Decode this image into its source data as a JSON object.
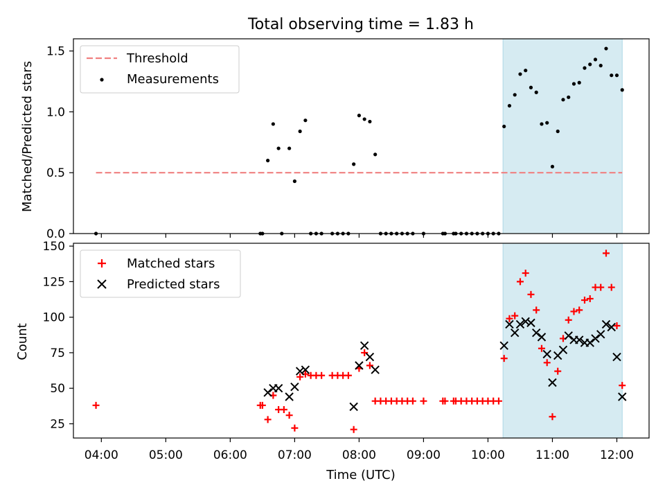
{
  "figure": {
    "title": "Total observing time = 1.83 h",
    "xlabel": "Time (UTC)"
  },
  "chart_data": [
    {
      "type": "scatter",
      "panel": "top",
      "title": "Total observing time = 1.83 h",
      "xlabel": "",
      "ylabel": "Matched/Predicted stars",
      "xlim": [
        "03:34",
        "12:30"
      ],
      "ylim": [
        0,
        1.6
      ],
      "yticks": [
        0.0,
        0.5,
        1.0,
        1.5
      ],
      "ytick_labels": [
        "0.0",
        "0.5",
        "1.0",
        "1.5"
      ],
      "xticks": [
        "04:00",
        "05:00",
        "06:00",
        "07:00",
        "08:00",
        "09:00",
        "10:00",
        "11:00",
        "12:00"
      ],
      "grid": false,
      "legend": "top-left",
      "shaded_region": {
        "x": [
          "10:14",
          "12:05"
        ],
        "color": "#add8e6"
      },
      "threshold": {
        "name": "Threshold",
        "y": 0.5,
        "x": [
          "03:55",
          "12:05"
        ],
        "color": "#f08080",
        "style": "dashed"
      },
      "series": [
        {
          "name": "Measurements",
          "marker": "dot",
          "color": "#000000",
          "points": [
            [
              "03:55",
              0.0
            ],
            [
              "06:28",
              0.0
            ],
            [
              "06:30",
              0.0
            ],
            [
              "06:48",
              0.0
            ],
            [
              "06:35",
              0.6
            ],
            [
              "06:40",
              0.9
            ],
            [
              "06:45",
              0.7
            ],
            [
              "06:55",
              0.7
            ],
            [
              "07:00",
              0.43
            ],
            [
              "07:05",
              0.84
            ],
            [
              "07:10",
              0.93
            ],
            [
              "07:15",
              0.0
            ],
            [
              "07:20",
              0.0
            ],
            [
              "07:25",
              0.0
            ],
            [
              "07:35",
              0.0
            ],
            [
              "07:40",
              0.0
            ],
            [
              "07:45",
              0.0
            ],
            [
              "07:50",
              0.0
            ],
            [
              "07:55",
              0.57
            ],
            [
              "08:00",
              0.97
            ],
            [
              "08:05",
              0.94
            ],
            [
              "08:10",
              0.92
            ],
            [
              "08:15",
              0.65
            ],
            [
              "08:20",
              0.0
            ],
            [
              "08:25",
              0.0
            ],
            [
              "08:30",
              0.0
            ],
            [
              "08:35",
              0.0
            ],
            [
              "08:40",
              0.0
            ],
            [
              "08:45",
              0.0
            ],
            [
              "08:50",
              0.0
            ],
            [
              "09:00",
              0.0
            ],
            [
              "09:18",
              0.0
            ],
            [
              "09:20",
              0.0
            ],
            [
              "09:28",
              0.0
            ],
            [
              "09:30",
              0.0
            ],
            [
              "09:35",
              0.0
            ],
            [
              "09:40",
              0.0
            ],
            [
              "09:45",
              0.0
            ],
            [
              "09:50",
              0.0
            ],
            [
              "09:55",
              0.0
            ],
            [
              "10:00",
              0.0
            ],
            [
              "10:05",
              0.0
            ],
            [
              "10:10",
              0.0
            ],
            [
              "10:15",
              0.88
            ],
            [
              "10:20",
              1.05
            ],
            [
              "10:25",
              1.14
            ],
            [
              "10:30",
              1.31
            ],
            [
              "10:35",
              1.34
            ],
            [
              "10:40",
              1.2
            ],
            [
              "10:45",
              1.16
            ],
            [
              "10:50",
              0.9
            ],
            [
              "10:55",
              0.91
            ],
            [
              "11:00",
              0.55
            ],
            [
              "11:05",
              0.84
            ],
            [
              "11:10",
              1.1
            ],
            [
              "11:15",
              1.12
            ],
            [
              "11:20",
              1.23
            ],
            [
              "11:25",
              1.24
            ],
            [
              "11:30",
              1.36
            ],
            [
              "11:35",
              1.39
            ],
            [
              "11:40",
              1.43
            ],
            [
              "11:45",
              1.38
            ],
            [
              "11:50",
              1.52
            ],
            [
              "11:55",
              1.3
            ],
            [
              "12:00",
              1.3
            ],
            [
              "12:05",
              1.18
            ]
          ]
        }
      ]
    },
    {
      "type": "scatter",
      "panel": "bottom",
      "xlabel": "Time (UTC)",
      "ylabel": "Count",
      "xlim": [
        "03:34",
        "12:30"
      ],
      "ylim": [
        15,
        152
      ],
      "yticks": [
        25,
        50,
        75,
        100,
        125,
        150
      ],
      "ytick_labels": [
        "25",
        "50",
        "75",
        "100",
        "125",
        "150"
      ],
      "xticks": [
        "04:00",
        "05:00",
        "06:00",
        "07:00",
        "08:00",
        "09:00",
        "10:00",
        "11:00",
        "12:00"
      ],
      "xtick_labels": [
        "04:00",
        "05:00",
        "06:00",
        "07:00",
        "08:00",
        "09:00",
        "10:00",
        "11:00",
        "12:00"
      ],
      "grid": false,
      "legend": "top-left",
      "shaded_region": {
        "x": [
          "10:14",
          "12:05"
        ],
        "color": "#add8e6"
      },
      "series": [
        {
          "name": "Matched stars",
          "marker": "plus",
          "color": "#ff0000",
          "points": [
            [
              "03:55",
              38
            ],
            [
              "06:28",
              38
            ],
            [
              "06:30",
              38
            ],
            [
              "06:35",
              28
            ],
            [
              "06:40",
              45
            ],
            [
              "06:45",
              35
            ],
            [
              "06:50",
              35
            ],
            [
              "06:55",
              31
            ],
            [
              "07:00",
              22
            ],
            [
              "07:05",
              58
            ],
            [
              "07:10",
              60
            ],
            [
              "07:15",
              59
            ],
            [
              "07:20",
              59
            ],
            [
              "07:25",
              59
            ],
            [
              "07:35",
              59
            ],
            [
              "07:40",
              59
            ],
            [
              "07:45",
              59
            ],
            [
              "07:50",
              59
            ],
            [
              "07:55",
              21
            ],
            [
              "08:00",
              64
            ],
            [
              "08:05",
              75
            ],
            [
              "08:10",
              66
            ],
            [
              "08:15",
              41
            ],
            [
              "08:20",
              41
            ],
            [
              "08:25",
              41
            ],
            [
              "08:30",
              41
            ],
            [
              "08:35",
              41
            ],
            [
              "08:40",
              41
            ],
            [
              "08:45",
              41
            ],
            [
              "08:50",
              41
            ],
            [
              "09:00",
              41
            ],
            [
              "09:18",
              41
            ],
            [
              "09:20",
              41
            ],
            [
              "09:28",
              41
            ],
            [
              "09:30",
              41
            ],
            [
              "09:35",
              41
            ],
            [
              "09:40",
              41
            ],
            [
              "09:45",
              41
            ],
            [
              "09:50",
              41
            ],
            [
              "09:55",
              41
            ],
            [
              "10:00",
              41
            ],
            [
              "10:05",
              41
            ],
            [
              "10:10",
              41
            ],
            [
              "10:15",
              71
            ],
            [
              "10:20",
              99
            ],
            [
              "10:25",
              101
            ],
            [
              "10:30",
              125
            ],
            [
              "10:35",
              131
            ],
            [
              "10:40",
              116
            ],
            [
              "10:45",
              105
            ],
            [
              "10:50",
              78
            ],
            [
              "10:55",
              68
            ],
            [
              "11:00",
              30
            ],
            [
              "11:05",
              62
            ],
            [
              "11:10",
              85
            ],
            [
              "11:15",
              98
            ],
            [
              "11:20",
              104
            ],
            [
              "11:25",
              105
            ],
            [
              "11:30",
              112
            ],
            [
              "11:35",
              113
            ],
            [
              "11:40",
              121
            ],
            [
              "11:45",
              121
            ],
            [
              "11:50",
              145
            ],
            [
              "11:55",
              121
            ],
            [
              "12:00",
              94
            ],
            [
              "12:05",
              52
            ]
          ]
        },
        {
          "name": "Predicted stars",
          "marker": "x",
          "color": "#000000",
          "points": [
            [
              "06:35",
              47
            ],
            [
              "06:40",
              50
            ],
            [
              "06:45",
              50
            ],
            [
              "06:55",
              44
            ],
            [
              "07:00",
              51
            ],
            [
              "07:05",
              62
            ],
            [
              "07:10",
              63
            ],
            [
              "07:55",
              37
            ],
            [
              "08:00",
              66
            ],
            [
              "08:05",
              80
            ],
            [
              "08:10",
              72
            ],
            [
              "08:15",
              63
            ],
            [
              "10:15",
              80
            ],
            [
              "10:20",
              95
            ],
            [
              "10:25",
              89
            ],
            [
              "10:30",
              95
            ],
            [
              "10:35",
              97
            ],
            [
              "10:40",
              96
            ],
            [
              "10:45",
              89
            ],
            [
              "10:50",
              86
            ],
            [
              "10:55",
              74
            ],
            [
              "11:00",
              54
            ],
            [
              "11:05",
              73
            ],
            [
              "11:10",
              77
            ],
            [
              "11:15",
              87
            ],
            [
              "11:20",
              84
            ],
            [
              "11:25",
              84
            ],
            [
              "11:30",
              82
            ],
            [
              "11:35",
              82
            ],
            [
              "11:40",
              85
            ],
            [
              "11:45",
              88
            ],
            [
              "11:50",
              95
            ],
            [
              "11:55",
              93
            ],
            [
              "12:00",
              72
            ],
            [
              "12:05",
              44
            ]
          ]
        }
      ]
    }
  ]
}
